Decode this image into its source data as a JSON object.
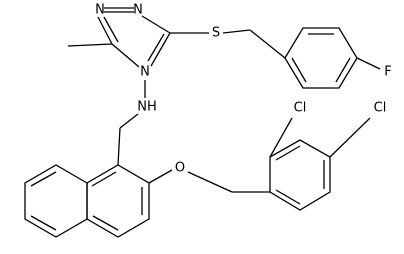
{
  "atoms": [
    {
      "label": "N"
    },
    {
      "label": "N"
    },
    {
      "label": "N"
    },
    {
      "label": "S"
    },
    {
      "label": "F"
    },
    {
      "label": "NH"
    },
    {
      "label": "O"
    },
    {
      "label": "Cl"
    },
    {
      "label": "Cl"
    }
  ]
}
